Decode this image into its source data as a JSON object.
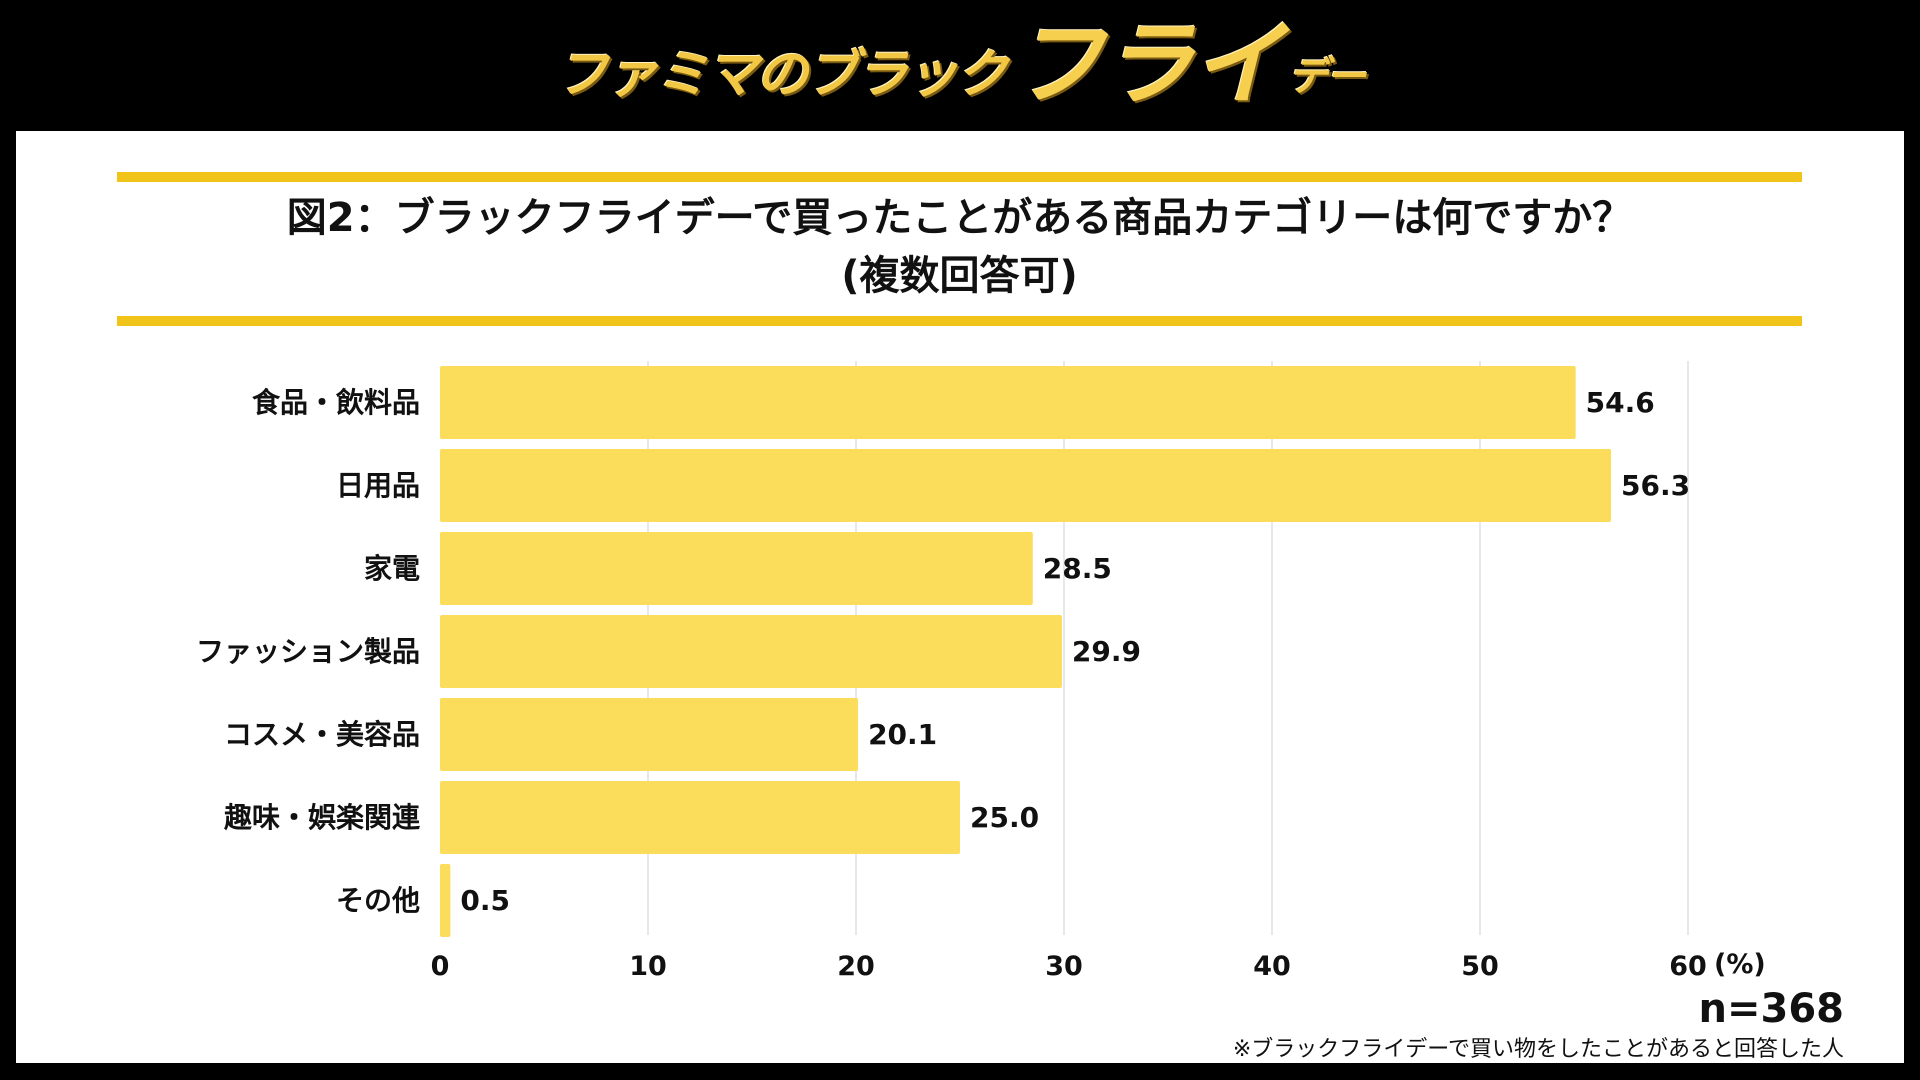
{
  "header": {
    "logo_part1": "ファミマのブラック",
    "logo_part2": "フライ",
    "logo_part3": "デー"
  },
  "title": {
    "line1": "図2：ブラックフライデーで買ったことがある商品カテゴリーは何ですか？",
    "line2": "(複数回答可)"
  },
  "sample_size": "n=368",
  "footnote": "※ブラックフライデーで買い物をしたことがあると回答した人",
  "colors": {
    "bar": "#fcdc5b",
    "accent_rule": "#f0c419",
    "gridline": "#e0e0e0"
  },
  "chart_data": {
    "type": "bar",
    "orientation": "horizontal",
    "categories": [
      "食品・飲料品",
      "日用品",
      "家電",
      "ファッション製品",
      "コスメ・美容品",
      "趣味・娯楽関連",
      "その他"
    ],
    "values": [
      54.6,
      56.3,
      28.5,
      29.9,
      20.1,
      25.0,
      0.5
    ],
    "value_labels": [
      "54.6",
      "56.3",
      "28.5",
      "29.9",
      "20.1",
      "25.0",
      "0.5"
    ],
    "xticks": [
      "0",
      "10",
      "20",
      "30",
      "40",
      "50",
      "60"
    ],
    "xunit": "(%)",
    "xlim": [
      0,
      60
    ],
    "grid": true
  }
}
